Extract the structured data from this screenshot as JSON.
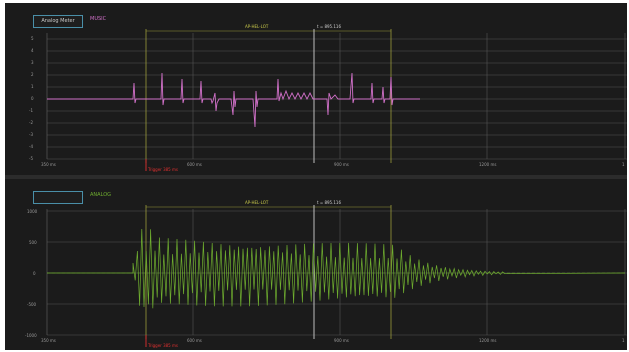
{
  "colors": {
    "background": "#1b1b1b",
    "grid": "#555555",
    "cursor_vertical": "#9a9a3a",
    "cursor_center": "#d0d0d0",
    "marker": "#e03030",
    "trace_top": "#d070c8",
    "trace_bottom": "#6fae2f",
    "button_border": "#4a8fa8"
  },
  "top_panel": {
    "channel_button": "Analog Meter",
    "channel_name": "MUSIC",
    "cursor_label": "AP-HEL-LOT",
    "center_label": "t = 895.116",
    "marker_label": "Trigger 385 ms",
    "x_ticks": [
      "350 ms",
      "600 ms",
      "900 ms",
      "1200 ms",
      "1"
    ],
    "y_ticks": [
      "5",
      "4",
      "3",
      "2",
      "1",
      "0",
      "-1",
      "-2",
      "-3",
      "-4",
      "-5"
    ]
  },
  "bottom_panel": {
    "channel_button": "",
    "channel_name": "ANALOG",
    "cursor_label": "AP-HEL-LOT",
    "center_label": "t = 895.116",
    "marker_label": "Trigger 385 ms",
    "x_ticks": [
      "350 ms",
      "600 ms",
      "900 ms",
      "1200 ms",
      "1"
    ],
    "y_ticks": [
      "1000",
      "500",
      "0",
      "-500",
      "-1000"
    ]
  }
}
